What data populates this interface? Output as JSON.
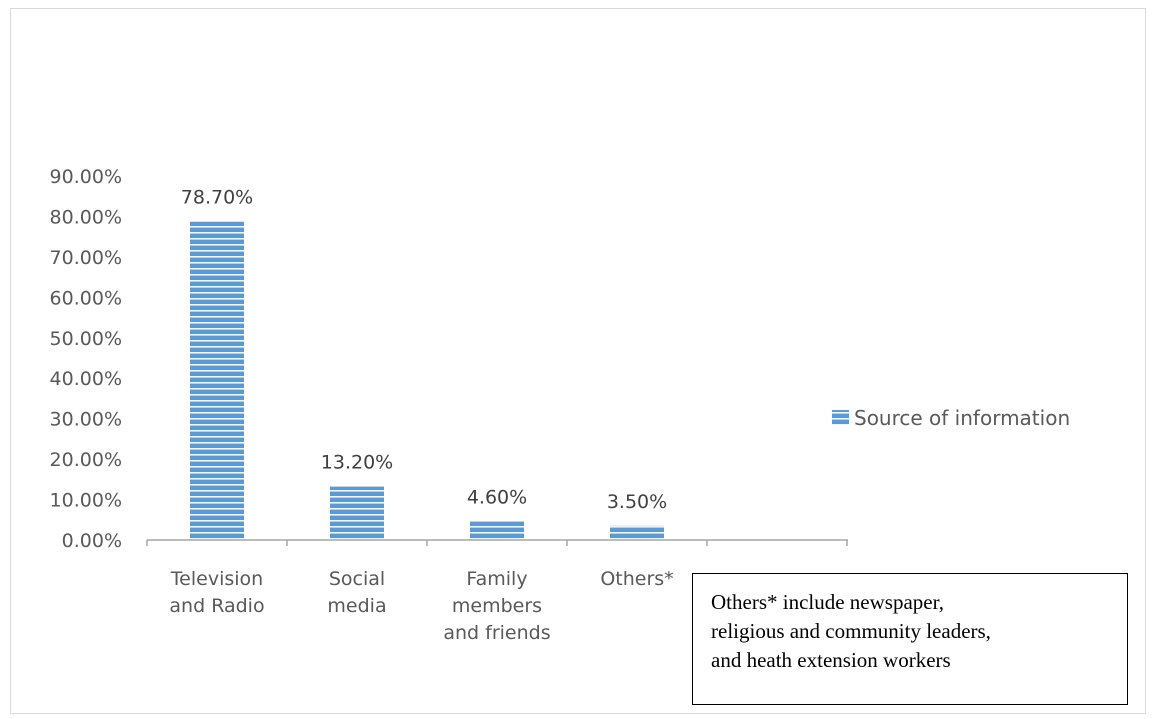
{
  "chart_data": {
    "type": "bar",
    "categories": [
      [
        "Television",
        "and Radio"
      ],
      [
        "Social",
        "media"
      ],
      [
        "Family",
        "members",
        "and friends"
      ],
      [
        "Others*"
      ]
    ],
    "series": [
      {
        "name": "Source of information",
        "values": [
          78.7,
          13.2,
          4.6,
          3.5
        ],
        "data_labels": [
          "78.70%",
          "13.20%",
          "4.60%",
          "3.50%"
        ]
      }
    ],
    "ylim": [
      0,
      90
    ],
    "yticks": [
      0,
      10,
      20,
      30,
      40,
      50,
      60,
      70,
      80,
      90
    ],
    "ytick_labels": [
      "0.00%",
      "10.00%",
      "20.00%",
      "30.00%",
      "40.00%",
      "50.00%",
      "60.00%",
      "70.00%",
      "80.00%",
      "90.00%"
    ],
    "title": "",
    "xlabel": "",
    "ylabel": "",
    "grid": false,
    "legend_position": "right",
    "bar_color": "#5b9bd5",
    "bar_stripe_color": "#ffffff"
  },
  "note": {
    "lines": [
      "Others* include newspaper,",
      "religious and community leaders,",
      "and heath extension workers"
    ]
  }
}
